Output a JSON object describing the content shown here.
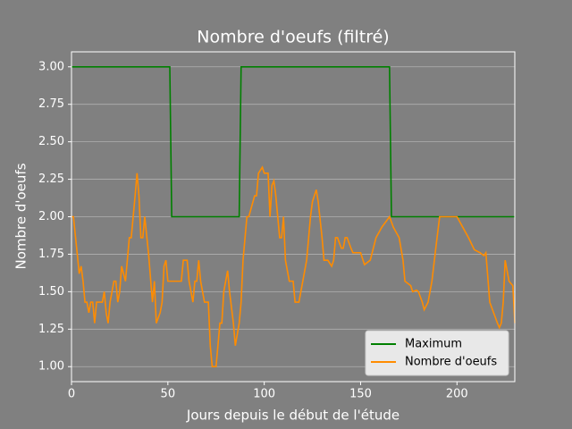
{
  "chart_data": {
    "type": "line",
    "title": "Nombre d'oeufs (filtré)",
    "xlabel": "Jours depuis le début de l'étude",
    "ylabel": "Nombre d'oeufs",
    "xlim": [
      0,
      230
    ],
    "ylim": [
      0.9,
      3.1
    ],
    "xticks": [
      0,
      50,
      100,
      150,
      200
    ],
    "yticks": [
      {
        "value": 1,
        "label": "1.00"
      },
      {
        "value": 1.25,
        "label": "1.25"
      },
      {
        "value": 1.5,
        "label": "1.50"
      },
      {
        "value": 1.75,
        "label": "1.75"
      },
      {
        "value": 2,
        "label": "2.00"
      },
      {
        "value": 2.25,
        "label": "2.25"
      },
      {
        "value": 2.5,
        "label": "2.50"
      },
      {
        "value": 2.75,
        "label": "2.75"
      },
      {
        "value": 3,
        "label": "3.00"
      }
    ],
    "grid": true,
    "legend": "lower right",
    "series": [
      {
        "name": "Maximum",
        "color": "#008000",
        "x": [
          0,
          51,
          52,
          87,
          88,
          165,
          166,
          230
        ],
        "values": [
          3,
          3,
          2,
          2,
          3,
          3,
          2,
          2
        ]
      },
      {
        "name": "Nombre d'oeufs",
        "color": "#ff8c00",
        "x": [
          0,
          1,
          3,
          4,
          5,
          6,
          7,
          8,
          9,
          10,
          11,
          12,
          13,
          14,
          16,
          17,
          18,
          19,
          20,
          22,
          23,
          24,
          25,
          26,
          28,
          30,
          31,
          33,
          34,
          35,
          36,
          37,
          38,
          40,
          42,
          43,
          44,
          46,
          47,
          48,
          49,
          50,
          53,
          57,
          58,
          60,
          61,
          63,
          64,
          65,
          66,
          67,
          69,
          71,
          72,
          73,
          75,
          77,
          78,
          79,
          81,
          82,
          84,
          85,
          87,
          88,
          89,
          91,
          92,
          95,
          96,
          97,
          99,
          100,
          102,
          103,
          104,
          105,
          106,
          108,
          109,
          110,
          111,
          113,
          115,
          116,
          118,
          120,
          122,
          124,
          125,
          127,
          128,
          130,
          131,
          132,
          133,
          135,
          136,
          137,
          138,
          140,
          141,
          142,
          143,
          145,
          146,
          148,
          150,
          152,
          155,
          158,
          161,
          165,
          167,
          170,
          172,
          173,
          176,
          177,
          179,
          180,
          182,
          183,
          185,
          187,
          189,
          191,
          197,
          200,
          203,
          206,
          209,
          212,
          214,
          215,
          217,
          219,
          221,
          222,
          223,
          224,
          225,
          226,
          227,
          229,
          230
        ],
        "values": [
          2.0,
          2.0,
          1.75,
          1.62,
          1.67,
          1.57,
          1.43,
          1.43,
          1.36,
          1.43,
          1.43,
          1.29,
          1.43,
          1.43,
          1.43,
          1.5,
          1.36,
          1.29,
          1.43,
          1.57,
          1.57,
          1.43,
          1.5,
          1.67,
          1.57,
          1.86,
          1.86,
          2.14,
          2.29,
          2.14,
          1.86,
          1.86,
          2.0,
          1.75,
          1.43,
          1.57,
          1.29,
          1.36,
          1.43,
          1.67,
          1.71,
          1.57,
          1.57,
          1.57,
          1.71,
          1.71,
          1.57,
          1.43,
          1.57,
          1.57,
          1.71,
          1.57,
          1.43,
          1.43,
          1.14,
          1.0,
          1.0,
          1.29,
          1.29,
          1.5,
          1.64,
          1.5,
          1.29,
          1.14,
          1.29,
          1.43,
          1.71,
          2.0,
          2.0,
          2.14,
          2.14,
          2.29,
          2.33,
          2.29,
          2.29,
          2.0,
          2.21,
          2.24,
          2.14,
          1.86,
          1.86,
          2.0,
          1.71,
          1.57,
          1.57,
          1.43,
          1.43,
          1.57,
          1.71,
          2.0,
          2.1,
          2.18,
          2.1,
          1.86,
          1.71,
          1.71,
          1.71,
          1.67,
          1.71,
          1.86,
          1.86,
          1.79,
          1.79,
          1.86,
          1.86,
          1.79,
          1.76,
          1.76,
          1.76,
          1.68,
          1.71,
          1.86,
          1.93,
          2.0,
          1.93,
          1.86,
          1.71,
          1.57,
          1.54,
          1.5,
          1.51,
          1.5,
          1.43,
          1.38,
          1.43,
          1.57,
          1.79,
          2.0,
          2.0,
          2.0,
          1.93,
          1.86,
          1.78,
          1.76,
          1.74,
          1.76,
          1.43,
          1.36,
          1.29,
          1.26,
          1.29,
          1.43,
          1.71,
          1.64,
          1.57,
          1.54,
          1.29
        ]
      }
    ]
  }
}
